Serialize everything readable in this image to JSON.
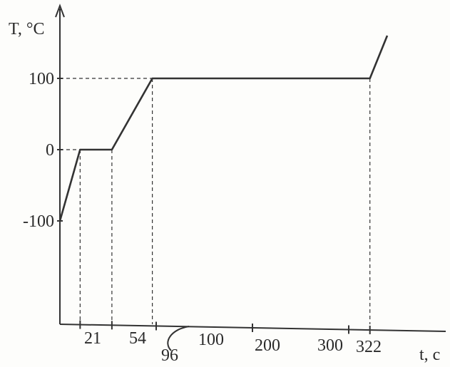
{
  "chart_data": {
    "type": "line",
    "title": "",
    "xlabel": "t, c",
    "ylabel": "T, °C",
    "xlim": [
      0,
      355
    ],
    "ylim": [
      -240,
      175
    ],
    "grid": false,
    "legend": "none",
    "x_ticks": [
      {
        "value": 21,
        "label": "21"
      },
      {
        "value": 54,
        "label": "54"
      },
      {
        "value": 96,
        "label": "96"
      },
      {
        "value": 100,
        "label": "100"
      },
      {
        "value": 200,
        "label": "200"
      },
      {
        "value": 300,
        "label": "300"
      },
      {
        "value": 322,
        "label": "322"
      }
    ],
    "y_ticks": [
      {
        "value": 100,
        "label": "100"
      },
      {
        "value": 0,
        "label": "0"
      },
      {
        "value": -100,
        "label": "-100"
      }
    ],
    "series": [
      {
        "x": [
          0,
          21,
          54,
          96,
          322,
          340
        ],
        "y": [
          -100,
          0,
          0,
          100,
          100,
          160
        ]
      }
    ],
    "colors": {
      "line": "#333333",
      "axis": "#333333",
      "text": "#2a2a2a"
    }
  }
}
